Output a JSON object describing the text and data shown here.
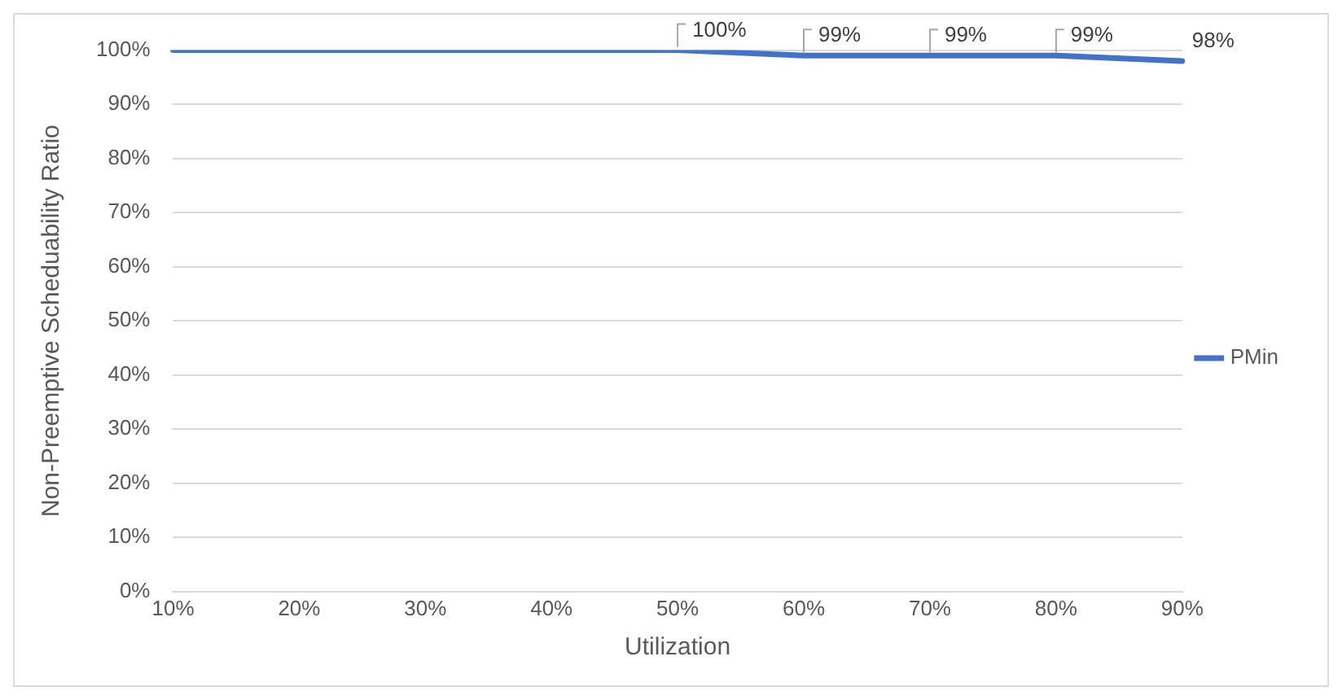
{
  "chart_data": {
    "type": "line",
    "xlabel": "Utilization",
    "ylabel": "Non-Preemptive Scheduability Ratio",
    "categories": [
      "10%",
      "20%",
      "30%",
      "40%",
      "50%",
      "60%",
      "70%",
      "80%",
      "90%"
    ],
    "series": [
      {
        "name": "PMin",
        "color": "#4472c4",
        "values": [
          100,
          100,
          100,
          100,
          100,
          99,
          99,
          99,
          98
        ],
        "value_labels": [
          null,
          null,
          null,
          null,
          "100%",
          "99%",
          "99%",
          "99%",
          "98%"
        ]
      }
    ],
    "ylim": [
      0,
      100
    ],
    "yticks": [
      {
        "value": 0,
        "label": "0%"
      },
      {
        "value": 10,
        "label": "10%"
      },
      {
        "value": 20,
        "label": "20%"
      },
      {
        "value": 30,
        "label": "30%"
      },
      {
        "value": 40,
        "label": "40%"
      },
      {
        "value": 50,
        "label": "50%"
      },
      {
        "value": 60,
        "label": "60%"
      },
      {
        "value": 70,
        "label": "70%"
      },
      {
        "value": 80,
        "label": "80%"
      },
      {
        "value": 90,
        "label": "90%"
      },
      {
        "value": 100,
        "label": "100%"
      }
    ],
    "grid": "y",
    "legend": "right",
    "marker": "none",
    "line_style": "solid"
  }
}
